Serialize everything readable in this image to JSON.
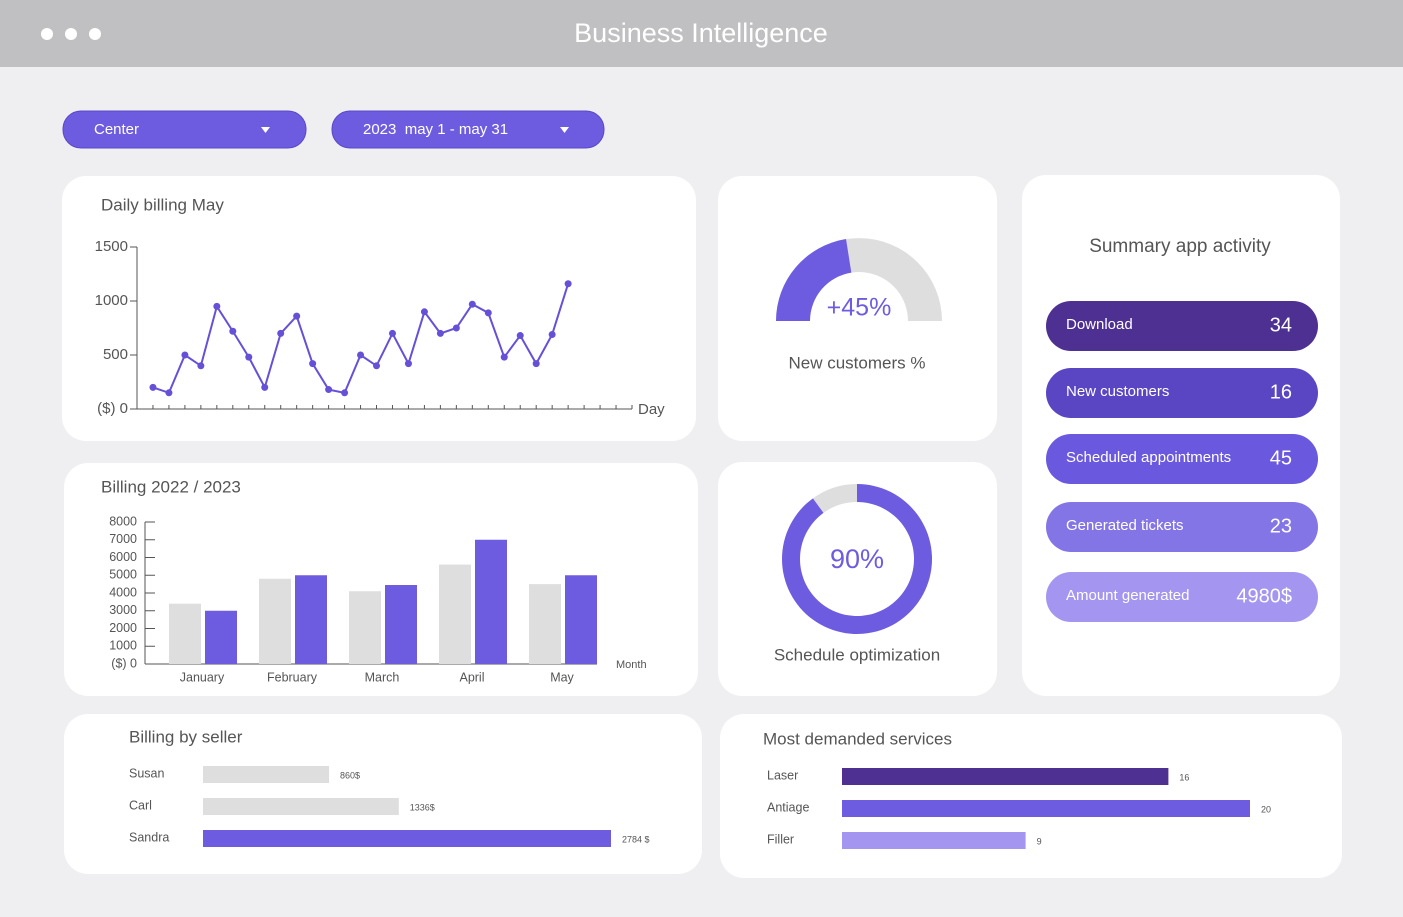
{
  "header": {
    "title": "Business Intelligence"
  },
  "filters": [
    "Center",
    "2023  may 1 - may 31"
  ],
  "chart_data": [
    {
      "type": "line",
      "title": "Daily billing May",
      "xlabel": "Day",
      "color": "#6650d8",
      "x": [
        1,
        2,
        3,
        4,
        5,
        6,
        7,
        8,
        9,
        10,
        11,
        12,
        13,
        14,
        15,
        16,
        17,
        18,
        19,
        20,
        21,
        22,
        23,
        24,
        25,
        26,
        27
      ],
      "values": [
        200,
        150,
        500,
        400,
        950,
        720,
        480,
        200,
        700,
        860,
        420,
        180,
        150,
        500,
        400,
        700,
        420,
        900,
        700,
        750,
        970,
        890,
        480,
        680,
        420,
        690,
        1160
      ],
      "xlim": [
        0,
        31
      ],
      "ylim": [
        0,
        1500
      ],
      "yticks": [
        {
          "value": 0,
          "label": "($) 0"
        },
        500,
        1000,
        1500
      ]
    },
    {
      "type": "bar",
      "title": "Billing 2022 / 2023",
      "xlabel": "Month",
      "categories": [
        "January",
        "February",
        "March",
        "April",
        "May"
      ],
      "series": [
        {
          "color": "#dedede",
          "values": [
            3400,
            4800,
            4100,
            5600,
            4500
          ]
        },
        {
          "color": "#6e5ce0",
          "values": [
            3000,
            5000,
            4450,
            7000,
            5000
          ]
        }
      ],
      "ylim": [
        0,
        8000
      ],
      "yticks": [
        {
          "value": 0,
          "label": "($) 0"
        },
        1000,
        2000,
        3000,
        4000,
        5000,
        6000,
        7000,
        8000
      ]
    },
    {
      "type": "hbar",
      "title": "Billing by seller",
      "categories": [
        "Susan",
        "Carl",
        "Sandra"
      ],
      "values": [
        860,
        1336,
        2784
      ],
      "value_labels": [
        "860$",
        "1336$",
        "2784 $"
      ],
      "colors": [
        "#dedede",
        "#dedede",
        "#6e5ce0"
      ]
    },
    {
      "type": "hbar",
      "title": "Most demanded services",
      "categories": [
        "Laser",
        "Antiage",
        "Filler"
      ],
      "values": [
        16,
        20,
        9
      ],
      "colors": [
        "#4e2f92",
        "#6e5ce0",
        "#a395f0"
      ]
    },
    {
      "type": "gauge",
      "title": "New customers %",
      "value": 45,
      "value_label": "+45%",
      "color": "#6e5ce0"
    },
    {
      "type": "donut",
      "title": "Schedule optimization",
      "value": 90,
      "value_label": "90%",
      "color": "#6e5ce0"
    }
  ],
  "summary": {
    "title": "Summary app activity",
    "items": [
      {
        "label": "Download",
        "value": 34,
        "color": "#4e2f92"
      },
      {
        "label": "New customers",
        "value": 16,
        "color": "#5a45c3"
      },
      {
        "label": "Scheduled appointments",
        "value": 45,
        "color": "#6a58de"
      },
      {
        "label": "Generated tickets",
        "value": 23,
        "color": "#8475e6"
      },
      {
        "label": "Amount generated",
        "value": 4980,
        "value_label": "4980$",
        "color": "#a395f0"
      }
    ]
  }
}
